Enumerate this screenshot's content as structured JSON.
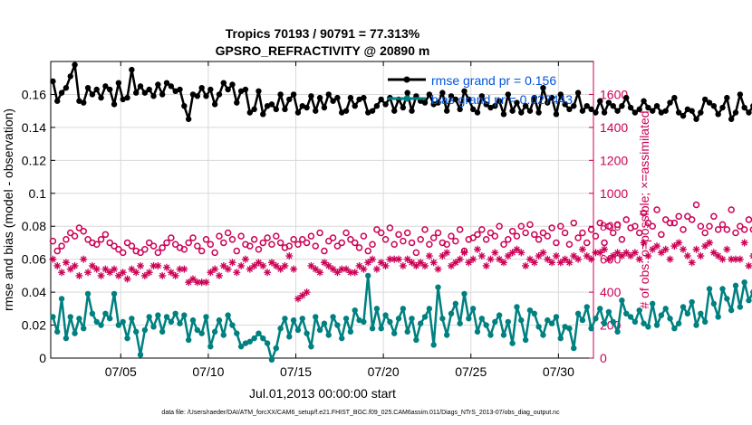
{
  "chart_data": {
    "type": "line",
    "title": "Tropics 70193 / 90791 = 77.313%",
    "subtitle": "GPSRO_REFRACTIVITY @ 20890 m",
    "xlabel": "Jul.01,2013 00:00:00 start",
    "ylabel_left": "rmse and bias (model - observation)",
    "ylabel_right": "# of obs: o=possible; ×=assimilated",
    "footnote": "data file: /Users/raeder/DAI/ATM_forcXX/CAM6_setup/f.e21.FHIST_BGC.f09_025.CAM6assim.011/Diags_NTrS_2013-07/obs_diag_output.nc",
    "xlim": [
      1,
      32
    ],
    "ylim_left": [
      0,
      0.18
    ],
    "ylim_right": [
      0,
      1800
    ],
    "grid": true,
    "legend_position": "top-right",
    "x_ticks": [
      5,
      10,
      15,
      20,
      25,
      30
    ],
    "x_tick_labels": [
      "07/05",
      "07/10",
      "07/15",
      "07/20",
      "07/25",
      "07/30"
    ],
    "y_ticks_left": [
      0,
      0.02,
      0.04,
      0.06,
      0.08,
      0.1,
      0.12,
      0.14,
      0.16
    ],
    "y_tick_labels_left": [
      "0",
      "0.02",
      "0.04",
      "0.06",
      "0.08",
      "0.1",
      "0.12",
      "0.14",
      "0.16"
    ],
    "y_ticks_right": [
      0,
      200,
      400,
      600,
      800,
      1000,
      1200,
      1400,
      1600
    ],
    "y_tick_labels_right": [
      "0",
      "200",
      "400",
      "600",
      "800",
      "1000",
      "1200",
      "1400",
      "1600"
    ],
    "x_step_days": 0.25,
    "x_start": 1.125,
    "colors": {
      "rmse": "#000000",
      "bias": "#008080",
      "obs": "#cc0055",
      "legend_text": "#0055dd",
      "grid": "#d9d9d9"
    },
    "series": [
      {
        "name": "rmse",
        "legend": "rmse grand pr = 0.156",
        "axis": "left",
        "values": [
          0.168,
          0.156,
          0.161,
          0.164,
          0.171,
          0.178,
          0.156,
          0.155,
          0.164,
          0.16,
          0.163,
          0.158,
          0.165,
          0.163,
          0.154,
          0.167,
          0.157,
          0.158,
          0.175,
          0.161,
          0.165,
          0.161,
          0.163,
          0.159,
          0.166,
          0.16,
          0.167,
          0.165,
          0.162,
          0.163,
          0.153,
          0.145,
          0.16,
          0.159,
          0.164,
          0.159,
          0.163,
          0.154,
          0.16,
          0.167,
          0.163,
          0.166,
          0.155,
          0.162,
          0.163,
          0.149,
          0.151,
          0.162,
          0.148,
          0.153,
          0.154,
          0.151,
          0.16,
          0.151,
          0.157,
          0.16,
          0.149,
          0.153,
          0.152,
          0.159,
          0.15,
          0.158,
          0.152,
          0.16,
          0.156,
          0.158,
          0.149,
          0.15,
          0.158,
          0.153,
          0.157,
          0.158,
          0.149,
          0.15,
          0.153,
          0.157,
          0.154,
          0.158,
          0.15,
          0.157,
          0.152,
          0.161,
          0.15,
          0.159,
          0.156,
          0.155,
          0.16,
          0.154,
          0.155,
          0.161,
          0.15,
          0.159,
          0.157,
          0.151,
          0.162,
          0.157,
          0.151,
          0.149,
          0.159,
          0.154,
          0.152,
          0.153,
          0.156,
          0.148,
          0.16,
          0.15,
          0.155,
          0.149,
          0.153,
          0.15,
          0.158,
          0.149,
          0.164,
          0.155,
          0.158,
          0.148,
          0.16,
          0.154,
          0.151,
          0.153,
          0.161,
          0.15,
          0.153,
          0.151,
          0.149,
          0.156,
          0.149,
          0.155,
          0.153,
          0.15,
          0.153,
          0.158,
          0.152,
          0.149,
          0.151,
          0.156,
          0.152,
          0.15,
          0.153,
          0.149,
          0.15,
          0.155,
          0.158,
          0.149,
          0.147,
          0.151,
          0.15,
          0.145,
          0.149,
          0.157,
          0.155,
          0.153,
          0.148,
          0.152,
          0.158,
          0.145,
          0.149,
          0.16,
          0.152,
          0.149,
          0.153,
          0.15,
          0.154,
          0.147,
          0.155,
          0.151,
          0.154,
          0.161,
          0.157,
          0.153,
          0.15,
          0.153,
          0.145,
          0.146,
          0.145,
          0.146,
          0.146,
          0.145
        ]
      },
      {
        "name": "bias",
        "legend": "bias grand pr = 0.027443",
        "axis": "left",
        "values": [
          0.025,
          0.016,
          0.036,
          0.012,
          0.025,
          0.015,
          0.024,
          0.018,
          0.039,
          0.027,
          0.022,
          0.02,
          0.027,
          0.024,
          0.039,
          0.02,
          0.022,
          0.012,
          0.024,
          0.016,
          0.002,
          0.017,
          0.025,
          0.019,
          0.026,
          0.016,
          0.025,
          0.022,
          0.027,
          0.021,
          0.026,
          0.011,
          0.023,
          0.017,
          0.015,
          0.025,
          0.007,
          0.016,
          0.023,
          0.014,
          0.026,
          0.02,
          0.015,
          0.007,
          0.009,
          0.01,
          0.012,
          0.015,
          0.012,
          0.009,
          -0.001,
          0.006,
          0.018,
          0.024,
          0.013,
          0.023,
          0.017,
          0.024,
          0.015,
          0.007,
          0.025,
          0.017,
          0.021,
          0.014,
          0.025,
          0.02,
          0.012,
          0.024,
          0.016,
          0.029,
          0.023,
          0.022,
          0.05,
          0.018,
          0.03,
          0.018,
          0.026,
          0.022,
          0.015,
          0.024,
          0.03,
          0.016,
          0.024,
          0.011,
          0.021,
          0.025,
          0.03,
          0.008,
          0.043,
          0.024,
          0.014,
          0.027,
          0.033,
          0.021,
          0.039,
          0.024,
          0.03,
          0.016,
          0.024,
          0.02,
          0.014,
          0.022,
          0.026,
          0.014,
          0.022,
          0.009,
          0.031,
          0.023,
          0.011,
          0.029,
          0.027,
          0.019,
          0.014,
          0.023,
          0.021,
          0.025,
          0.012,
          0.019,
          0.018,
          0.006,
          0.027,
          0.023,
          0.031,
          0.018,
          0.024,
          0.03,
          0.021,
          0.028,
          0.022,
          0.016,
          0.035,
          0.027,
          0.025,
          0.022,
          0.029,
          0.021,
          0.019,
          0.033,
          0.02,
          0.026,
          0.03,
          0.024,
          0.018,
          0.021,
          0.031,
          0.027,
          0.034,
          0.02,
          0.027,
          0.022,
          0.042,
          0.033,
          0.025,
          0.042,
          0.036,
          0.029,
          0.044,
          0.031,
          0.046,
          0.035,
          0.04,
          0.041,
          0.036,
          0.042,
          0.032,
          0.052,
          0.045,
          0.036,
          0.043,
          0.039,
          0.043,
          0.036,
          0.05,
          0.046,
          0.04,
          0.049,
          0.044,
          0.048,
          0.047,
          0.038,
          0.042,
          0.032,
          0.026,
          0.034
        ]
      },
      {
        "name": "obs_possible",
        "axis": "right",
        "marker": "circle",
        "values": [
          710,
          650,
          680,
          720,
          760,
          740,
          790,
          770,
          720,
          700,
          690,
          720,
          750,
          700,
          680,
          660,
          640,
          700,
          680,
          650,
          640,
          660,
          700,
          680,
          640,
          670,
          700,
          730,
          690,
          670,
          660,
          700,
          730,
          680,
          650,
          720,
          690,
          640,
          740,
          700,
          760,
          720,
          650,
          740,
          690,
          680,
          720,
          660,
          700,
          730,
          690,
          740,
          700,
          670,
          680,
          720,
          690,
          720,
          700,
          740,
          680,
          760,
          650,
          710,
          730,
          680,
          700,
          760,
          720,
          700,
          670,
          740,
          650,
          690,
          780,
          760,
          720,
          790,
          690,
          750,
          710,
          760,
          700,
          640,
          720,
          780,
          690,
          730,
          760,
          700,
          690,
          740,
          710,
          780,
          650,
          720,
          730,
          750,
          780,
          720,
          760,
          740,
          800,
          690,
          720,
          770,
          740,
          800,
          760,
          810,
          750,
          720,
          760,
          740,
          790,
          700,
          800,
          760,
          690,
          820,
          730,
          760,
          700,
          780,
          740,
          820,
          700,
          800,
          760,
          810,
          720,
          840,
          790,
          800,
          760,
          880,
          820,
          800,
          900,
          750,
          840,
          820,
          820,
          860,
          780,
          860,
          840,
          930,
          800,
          760,
          800,
          860,
          780,
          810,
          780,
          900,
          760,
          800,
          780,
          840,
          780,
          770,
          820,
          860,
          800,
          830,
          780,
          850,
          790,
          810,
          840,
          810,
          730,
          770,
          780
        ]
      },
      {
        "name": "obs_assimilated",
        "axis": "right",
        "marker": "asterisk",
        "values": [
          600,
          560,
          520,
          580,
          540,
          560,
          500,
          600,
          520,
          560,
          540,
          500,
          540,
          520,
          540,
          500,
          520,
          480,
          540,
          520,
          560,
          500,
          520,
          560,
          560,
          500,
          550,
          520,
          500,
          540,
          540,
          460,
          480,
          460,
          460,
          460,
          520,
          540,
          500,
          560,
          540,
          580,
          520,
          560,
          600,
          540,
          560,
          580,
          560,
          520,
          580,
          560,
          540,
          560,
          620,
          540,
          360,
          380,
          400,
          560,
          540,
          520,
          580,
          560,
          540,
          520,
          540,
          540,
          520,
          520,
          560,
          540,
          580,
          600,
          540,
          580,
          560,
          600,
          600,
          600,
          560,
          600,
          580,
          560,
          580,
          560,
          620,
          580,
          540,
          620,
          640,
          560,
          580,
          600,
          640,
          580,
          600,
          660,
          620,
          560,
          600,
          640,
          600,
          580,
          620,
          640,
          660,
          640,
          560,
          600,
          580,
          620,
          640,
          600,
          580,
          620,
          580,
          600,
          580,
          620,
          600,
          660,
          620,
          600,
          640,
          640,
          660,
          600,
          620,
          640,
          620,
          640,
          620,
          640,
          600,
          700,
          620,
          660,
          680,
          640,
          660,
          600,
          680,
          700,
          660,
          620,
          580,
          660,
          620,
          680,
          700,
          640,
          620,
          600,
          660,
          600,
          600,
          600,
          700,
          560,
          620,
          620,
          660,
          660,
          640,
          640,
          600,
          620,
          580,
          640,
          660,
          680,
          700,
          600,
          580,
          620
        ]
      }
    ]
  }
}
